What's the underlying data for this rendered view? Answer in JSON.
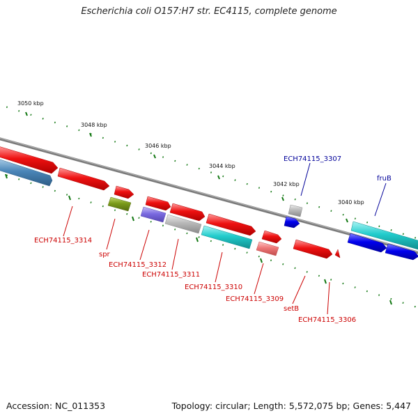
{
  "title": "Escherichia coli O157:H7 str. EC4115, complete genome",
  "footer": {
    "accession": "Accession: NC_011353",
    "summary": "Topology: circular; Length: 5,572,075 bp; Genes: 5,447"
  },
  "ruler": [
    "3050 kbp",
    "3048 kbp",
    "3046 kbp",
    "3044 kbp",
    "3042 kbp",
    "3040 kbp"
  ],
  "gene_labels": [
    {
      "text": "ECH74115_3307",
      "color": "#000099"
    },
    {
      "text": "fruB",
      "color": "#000099"
    },
    {
      "text": "ECH74115_3314",
      "color": "#cc0000"
    },
    {
      "text": "spr",
      "color": "#cc0000"
    },
    {
      "text": "ECH74115_3312",
      "color": "#cc0000"
    },
    {
      "text": "ECH74115_3311",
      "color": "#cc0000"
    },
    {
      "text": "ECH74115_3310",
      "color": "#cc0000"
    },
    {
      "text": "ECH74115_3309",
      "color": "#cc0000"
    },
    {
      "text": "setB",
      "color": "#cc0000"
    },
    {
      "text": "ECH74115_3306",
      "color": "#cc0000"
    }
  ],
  "colors": {
    "red": "#ee1111",
    "blue": "#0000ee",
    "cyan": "#22cccc",
    "gray": "#b8b8b8",
    "steel": "#4a86b8",
    "olive": "#7a9a1a",
    "purple": "#7a6ae0",
    "pink": "#ee7777",
    "backbone": "#7a7a7a",
    "tick": "#117711"
  }
}
